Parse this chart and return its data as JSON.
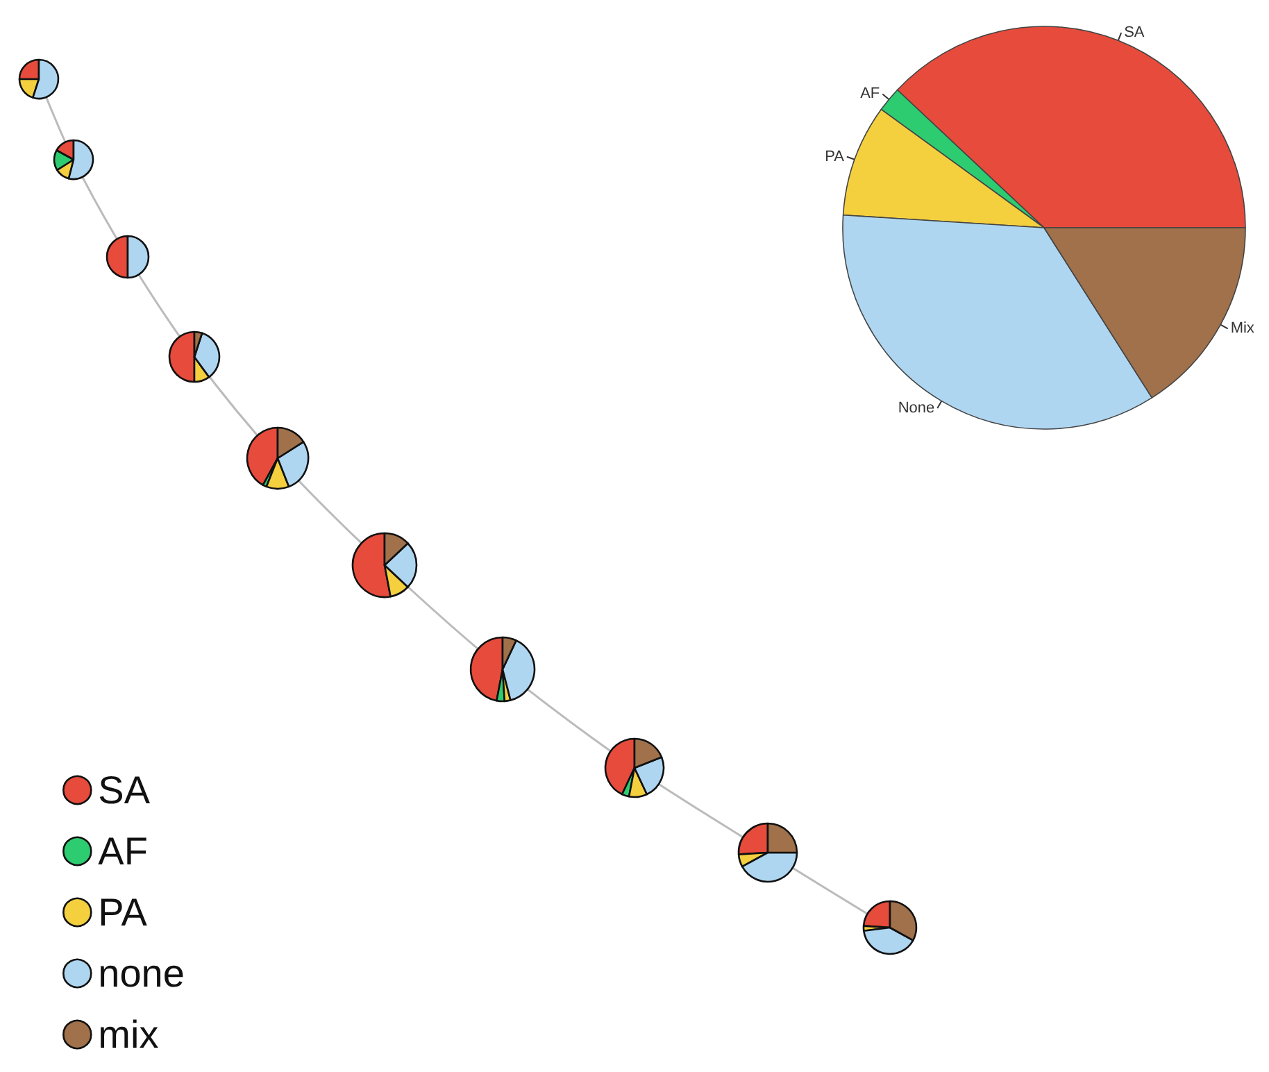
{
  "chart_data": [
    {
      "type": "pie",
      "categories": [
        "SA",
        "AF",
        "PA",
        "none",
        "mix"
      ],
      "colors": [
        "#e64b3c",
        "#2ecc71",
        "#f4d03f",
        "#aed6f1",
        "#a0714a"
      ],
      "legend": "bottom left",
      "series": [
        {
          "values": [
            25,
            0,
            20,
            55,
            0
          ]
        },
        {
          "values": [
            17,
            17,
            12,
            54,
            0
          ]
        },
        {
          "values": [
            50,
            0,
            0,
            50,
            0
          ]
        },
        {
          "values": [
            50,
            0,
            10,
            35,
            5
          ]
        },
        {
          "values": [
            42,
            2,
            12,
            28,
            16
          ]
        },
        {
          "values": [
            53,
            0,
            10,
            24,
            13
          ]
        },
        {
          "values": [
            47,
            4,
            3,
            39,
            7
          ]
        },
        {
          "values": [
            43,
            4,
            10,
            24,
            19
          ]
        },
        {
          "values": [
            26,
            0,
            7,
            42,
            25
          ]
        },
        {
          "values": [
            24,
            0,
            3,
            40,
            33
          ]
        }
      ]
    },
    {
      "type": "pie",
      "categories": [
        "SA",
        "AF",
        "PA",
        "None",
        "Mix"
      ],
      "values": [
        38,
        2,
        9,
        35,
        16
      ],
      "colors": [
        "#e64b3c",
        "#2ecc71",
        "#f4d03f",
        "#aed6f1",
        "#a0714a"
      ],
      "legend": false
    }
  ]
}
